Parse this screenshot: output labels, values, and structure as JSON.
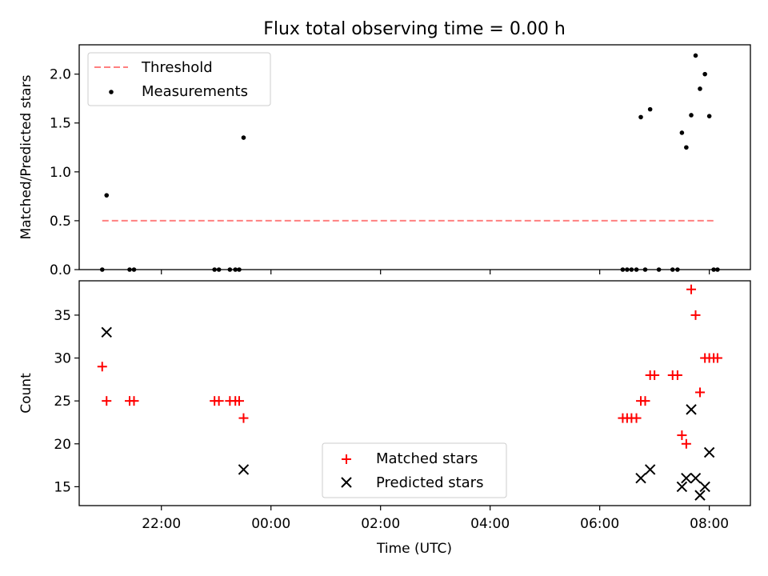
{
  "title": "Flux total observing time = 0.00 h",
  "colors": {
    "threshold": "#ff8080",
    "measurements": "#000000",
    "matched": "#ff0000",
    "predicted": "#000000"
  },
  "chart_data": [
    {
      "type": "scatter",
      "ylabel": "Matched/Predicted stars",
      "xlabel": "",
      "xlim": [
        20.5,
        32.75
      ],
      "ylim": [
        0,
        2.3
      ],
      "yticks": [
        "0.0",
        "0.5",
        "1.0",
        "1.5",
        "2.0"
      ],
      "ytick_values": [
        0,
        0.5,
        1.0,
        1.5,
        2.0
      ],
      "legend": {
        "placement": "top-left",
        "entries": [
          "Threshold",
          "Measurements"
        ]
      },
      "threshold": {
        "name": "Threshold",
        "y": 0.5,
        "x_start": 20.92,
        "x_end": 32.08
      },
      "series": [
        {
          "name": "Measurements",
          "marker": "dot",
          "x": [
            20.92,
            21.0,
            21.42,
            21.5,
            22.97,
            23.05,
            23.25,
            23.35,
            23.42,
            23.5,
            30.42,
            30.5,
            30.58,
            30.67,
            30.75,
            30.83,
            30.92,
            31.08,
            31.33,
            31.42,
            31.5,
            31.58,
            31.67,
            31.75,
            31.83,
            31.92,
            32.0,
            32.08,
            32.15
          ],
          "y": [
            0,
            0.76,
            0,
            0,
            0,
            0,
            0,
            0,
            0,
            1.35,
            0,
            0,
            0,
            0,
            1.56,
            0,
            1.64,
            0,
            0,
            0,
            1.4,
            1.25,
            1.58,
            2.19,
            1.85,
            2.0,
            1.57,
            0,
            0
          ]
        }
      ]
    },
    {
      "type": "scatter",
      "ylabel": "Count",
      "xlabel": "Time (UTC)",
      "xlim": [
        20.5,
        32.75
      ],
      "ylim": [
        12.8,
        39.0
      ],
      "yticks": [
        "15",
        "20",
        "25",
        "30",
        "35"
      ],
      "ytick_values": [
        15,
        20,
        25,
        30,
        35
      ],
      "xticks": [
        "22:00",
        "00:00",
        "02:00",
        "04:00",
        "06:00",
        "08:00"
      ],
      "xtick_values": [
        22,
        24,
        26,
        28,
        30,
        32
      ],
      "legend": {
        "placement": "lower-center",
        "entries": [
          "Matched stars",
          "Predicted stars"
        ]
      },
      "series": [
        {
          "name": "Matched stars",
          "marker": "plus",
          "x": [
            20.92,
            21.0,
            21.42,
            21.5,
            22.97,
            23.05,
            23.25,
            23.35,
            23.42,
            23.5,
            30.42,
            30.5,
            30.58,
            30.67,
            30.75,
            30.83,
            30.92,
            31.0,
            31.33,
            31.42,
            31.5,
            31.58,
            31.67,
            31.75,
            31.83,
            31.92,
            32.0,
            32.08,
            32.15
          ],
          "y": [
            29,
            25,
            25,
            25,
            25,
            25,
            25,
            25,
            25,
            23,
            23,
            23,
            23,
            23,
            25,
            25,
            28,
            28,
            28,
            28,
            21,
            20,
            38,
            35,
            26,
            30,
            30,
            30,
            30
          ]
        },
        {
          "name": "Predicted stars",
          "marker": "x",
          "x": [
            21.0,
            23.5,
            30.75,
            30.92,
            31.5,
            31.58,
            31.67,
            31.75,
            31.83,
            31.92,
            32.0
          ],
          "y": [
            33,
            17,
            16,
            17,
            15,
            16,
            24,
            16,
            14,
            15,
            19
          ]
        }
      ]
    }
  ]
}
